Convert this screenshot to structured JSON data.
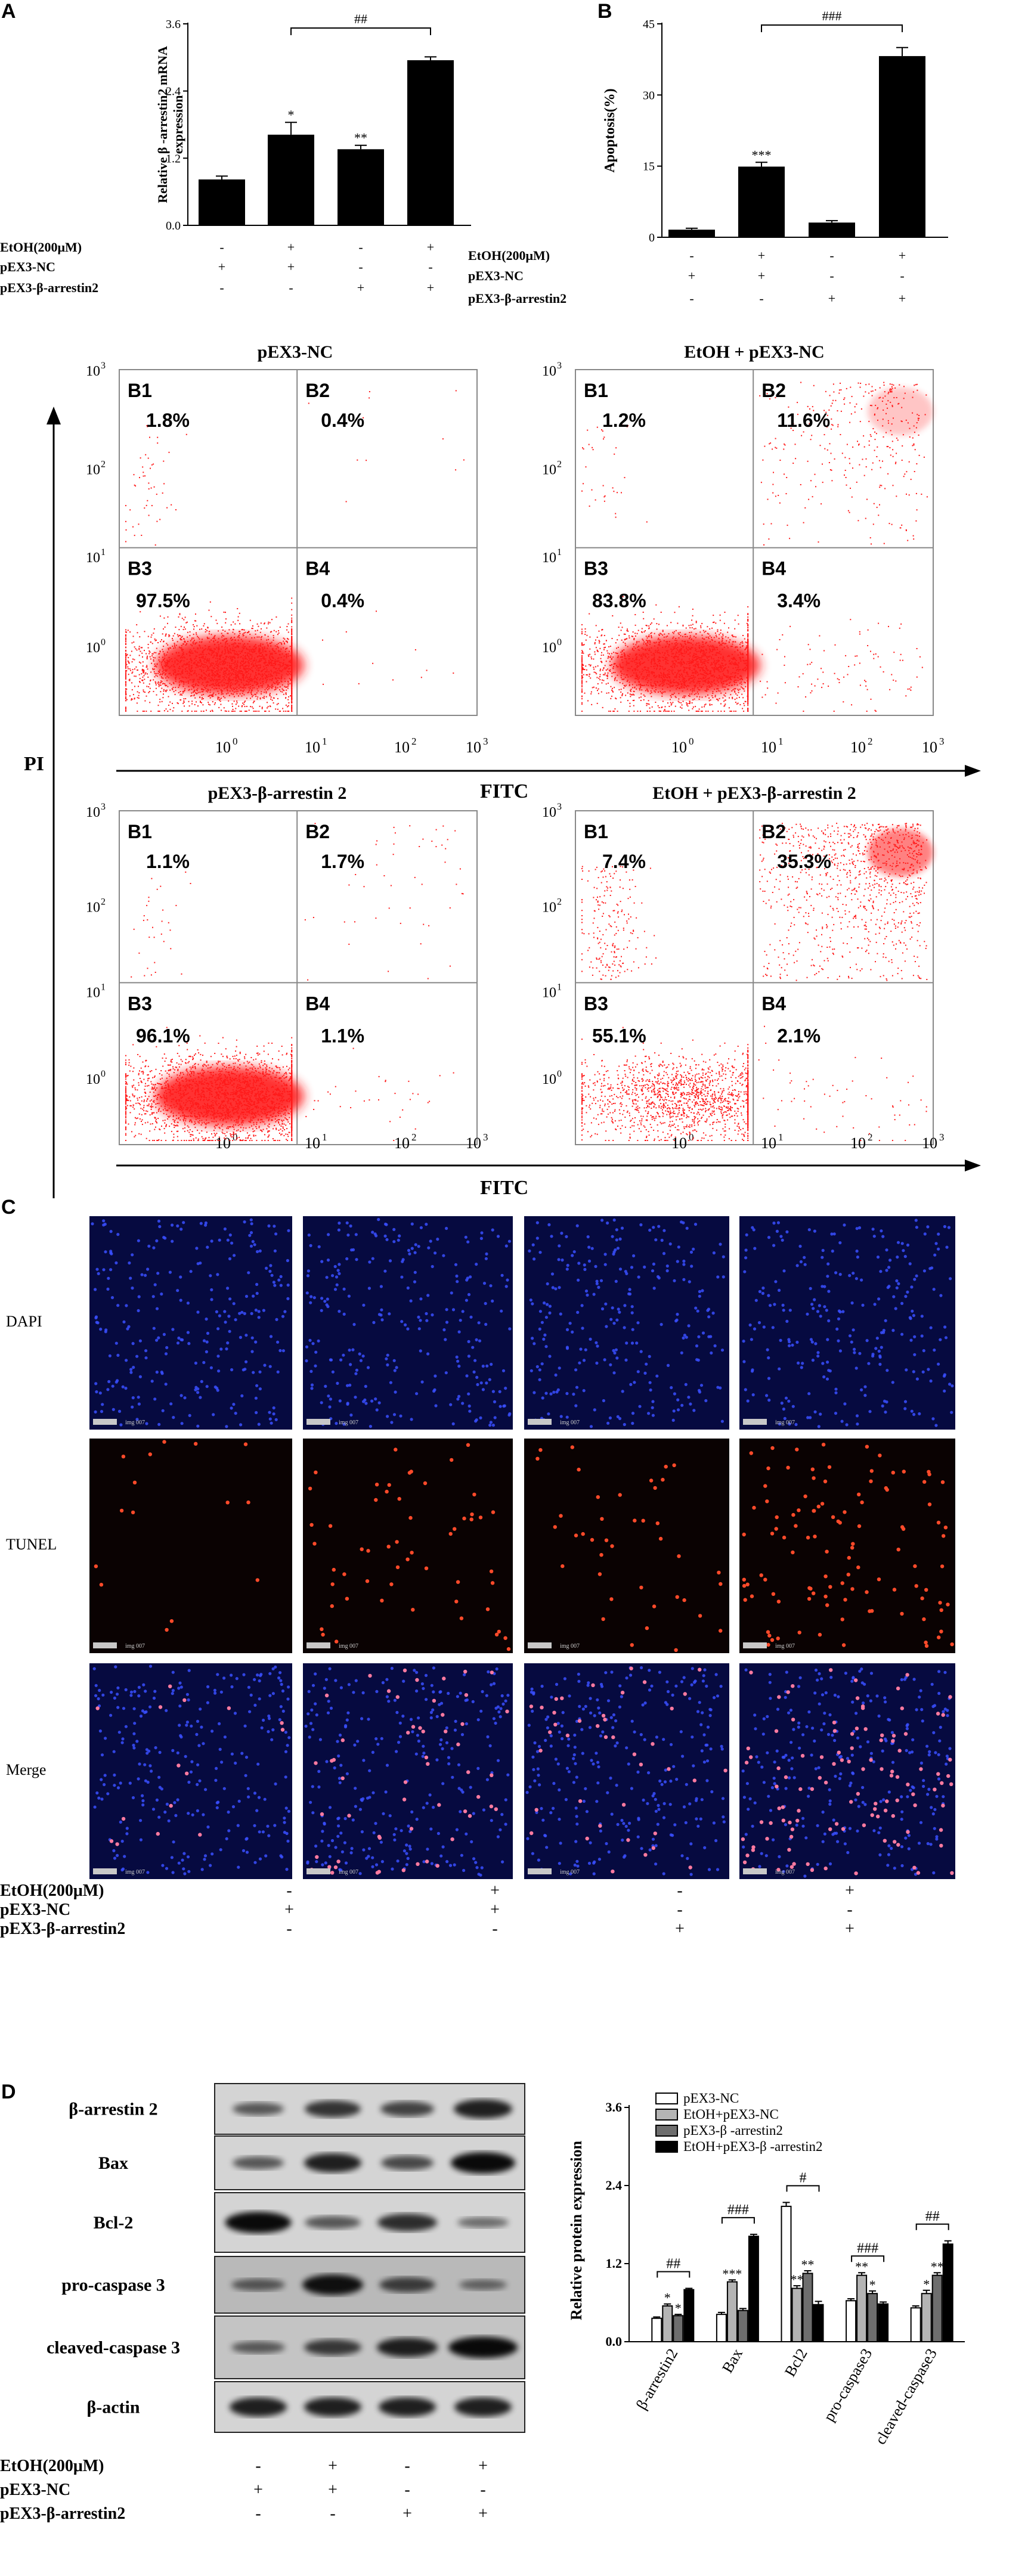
{
  "panels": {
    "a": "A",
    "b": "B",
    "c": "C",
    "d": "D"
  },
  "treatment_labels": {
    "etoh": "EtOH(200μM)",
    "nc": "pEX3-NC",
    "arr": "pEX3-β-arrestin2"
  },
  "treatment_signs": {
    "etoh": [
      "-",
      "+",
      "-",
      "+"
    ],
    "nc": [
      "+",
      "+",
      "-",
      "-"
    ],
    "arr": [
      "-",
      "-",
      "+",
      "+"
    ]
  },
  "chart_data": [
    {
      "type": "bar",
      "panel": "A",
      "ylabel_lines": [
        "Relative β -arrestin2 mRNA",
        "expression"
      ],
      "ylim": [
        0,
        3.6
      ],
      "yticks": [
        "0.0",
        "1.2",
        "2.4",
        "3.6"
      ],
      "values": [
        0.82,
        1.62,
        1.36,
        2.95
      ],
      "errors": [
        0.06,
        0.22,
        0.07,
        0.06
      ],
      "sig_marks": [
        "",
        "*",
        "**",
        ""
      ],
      "bracket": {
        "from": 1,
        "to": 3,
        "label": "##"
      },
      "bar_color": "#000000"
    },
    {
      "type": "bar",
      "panel": "B",
      "ylabel": "Apoptosis(%)",
      "ylim": [
        0,
        45
      ],
      "yticks": [
        "0",
        "15",
        "30",
        "45"
      ],
      "values": [
        1.6,
        14.9,
        3.1,
        38.2
      ],
      "errors": [
        0.3,
        0.9,
        0.4,
        1.8
      ],
      "sig_marks": [
        "",
        "***",
        "",
        ""
      ],
      "bracket": {
        "from": 1,
        "to": 3,
        "label": "###"
      },
      "bar_color": "#000000"
    },
    {
      "type": "scatter",
      "panel": "flow-cytometry",
      "xlabel": "FITC",
      "ylabel": "PI",
      "axis_tick_bases": [
        "10",
        "10",
        "10",
        "10"
      ],
      "axis_tick_exps": [
        "0",
        "1",
        "2",
        "3"
      ],
      "plots": [
        {
          "title": "pEX3-NC",
          "quadrants": [
            {
              "label": "B1",
              "value": "1.8%"
            },
            {
              "label": "B2",
              "value": "0.4%"
            },
            {
              "label": "B3",
              "value": "97.5%"
            },
            {
              "label": "B4",
              "value": "0.4%"
            }
          ]
        },
        {
          "title": "EtOH + pEX3-NC",
          "quadrants": [
            {
              "label": "B1",
              "value": "1.2%"
            },
            {
              "label": "B2",
              "value": "11.6%"
            },
            {
              "label": "B3",
              "value": "83.8%"
            },
            {
              "label": "B4",
              "value": "3.4%"
            }
          ]
        },
        {
          "title": "pEX3-β-arrestin 2",
          "quadrants": [
            {
              "label": "B1",
              "value": "1.1%"
            },
            {
              "label": "B2",
              "value": "1.7%"
            },
            {
              "label": "B3",
              "value": "96.1%"
            },
            {
              "label": "B4",
              "value": "1.1%"
            }
          ]
        },
        {
          "title": "EtOH + pEX3-β-arrestin 2",
          "quadrants": [
            {
              "label": "B1",
              "value": "7.4%"
            },
            {
              "label": "B2",
              "value": "35.3%"
            },
            {
              "label": "B3",
              "value": "55.1%"
            },
            {
              "label": "B4",
              "value": "2.1%"
            }
          ]
        }
      ],
      "dot_color": "#ff1a1a"
    },
    {
      "type": "bar",
      "panel": "D",
      "ylabel": "Relative protein expression",
      "ylim": [
        0,
        3.6
      ],
      "yticks": [
        "0.0",
        "1.2",
        "2.4",
        "3.6"
      ],
      "categories": [
        "β-arrestin2",
        "Bax",
        "Bcl2",
        "pro-caspase3",
        "cleaved-caspase3"
      ],
      "series": [
        {
          "name": "pEX3-NC",
          "values": [
            0.36,
            0.42,
            2.08,
            0.63,
            0.52
          ],
          "errors": [
            0.02,
            0.03,
            0.06,
            0.03,
            0.03
          ],
          "color": "#ffffff"
        },
        {
          "name": "EtOH+pEX3-NC",
          "values": [
            0.55,
            0.92,
            0.82,
            1.02,
            0.74
          ],
          "errors": [
            0.03,
            0.03,
            0.04,
            0.04,
            0.05
          ],
          "color": "#b4b4b4"
        },
        {
          "name": "pEX3-β -arrestin2",
          "values": [
            0.4,
            0.48,
            1.05,
            0.74,
            1.02
          ],
          "errors": [
            0.02,
            0.03,
            0.04,
            0.04,
            0.04
          ],
          "color": "#6e6e6e"
        },
        {
          "name": "EtOH+pEX3-β -arrestin2",
          "values": [
            0.8,
            1.62,
            0.57,
            0.58,
            1.5
          ],
          "errors": [
            0.02,
            0.03,
            0.05,
            0.03,
            0.05
          ],
          "color": "#000000"
        }
      ],
      "sig_marks": [
        [
          "",
          "*",
          "*",
          ""
        ],
        [
          "",
          "***",
          "",
          ""
        ],
        [
          "",
          "**",
          "**",
          ""
        ],
        [
          "",
          "**",
          "*",
          ""
        ],
        [
          "",
          "*",
          "**",
          ""
        ]
      ],
      "brackets": [
        "##",
        "###",
        "#",
        "###",
        "##"
      ]
    }
  ],
  "microscopy": {
    "row_labels": [
      "DAPI",
      "TUNEL",
      "Merge"
    ],
    "scale_label": "img 007"
  },
  "western_blot": {
    "bands": [
      "β-arrestin 2",
      "Bax",
      "Bcl-2",
      "pro-caspase 3",
      "cleaved-caspase 3",
      "β-actin"
    ]
  }
}
